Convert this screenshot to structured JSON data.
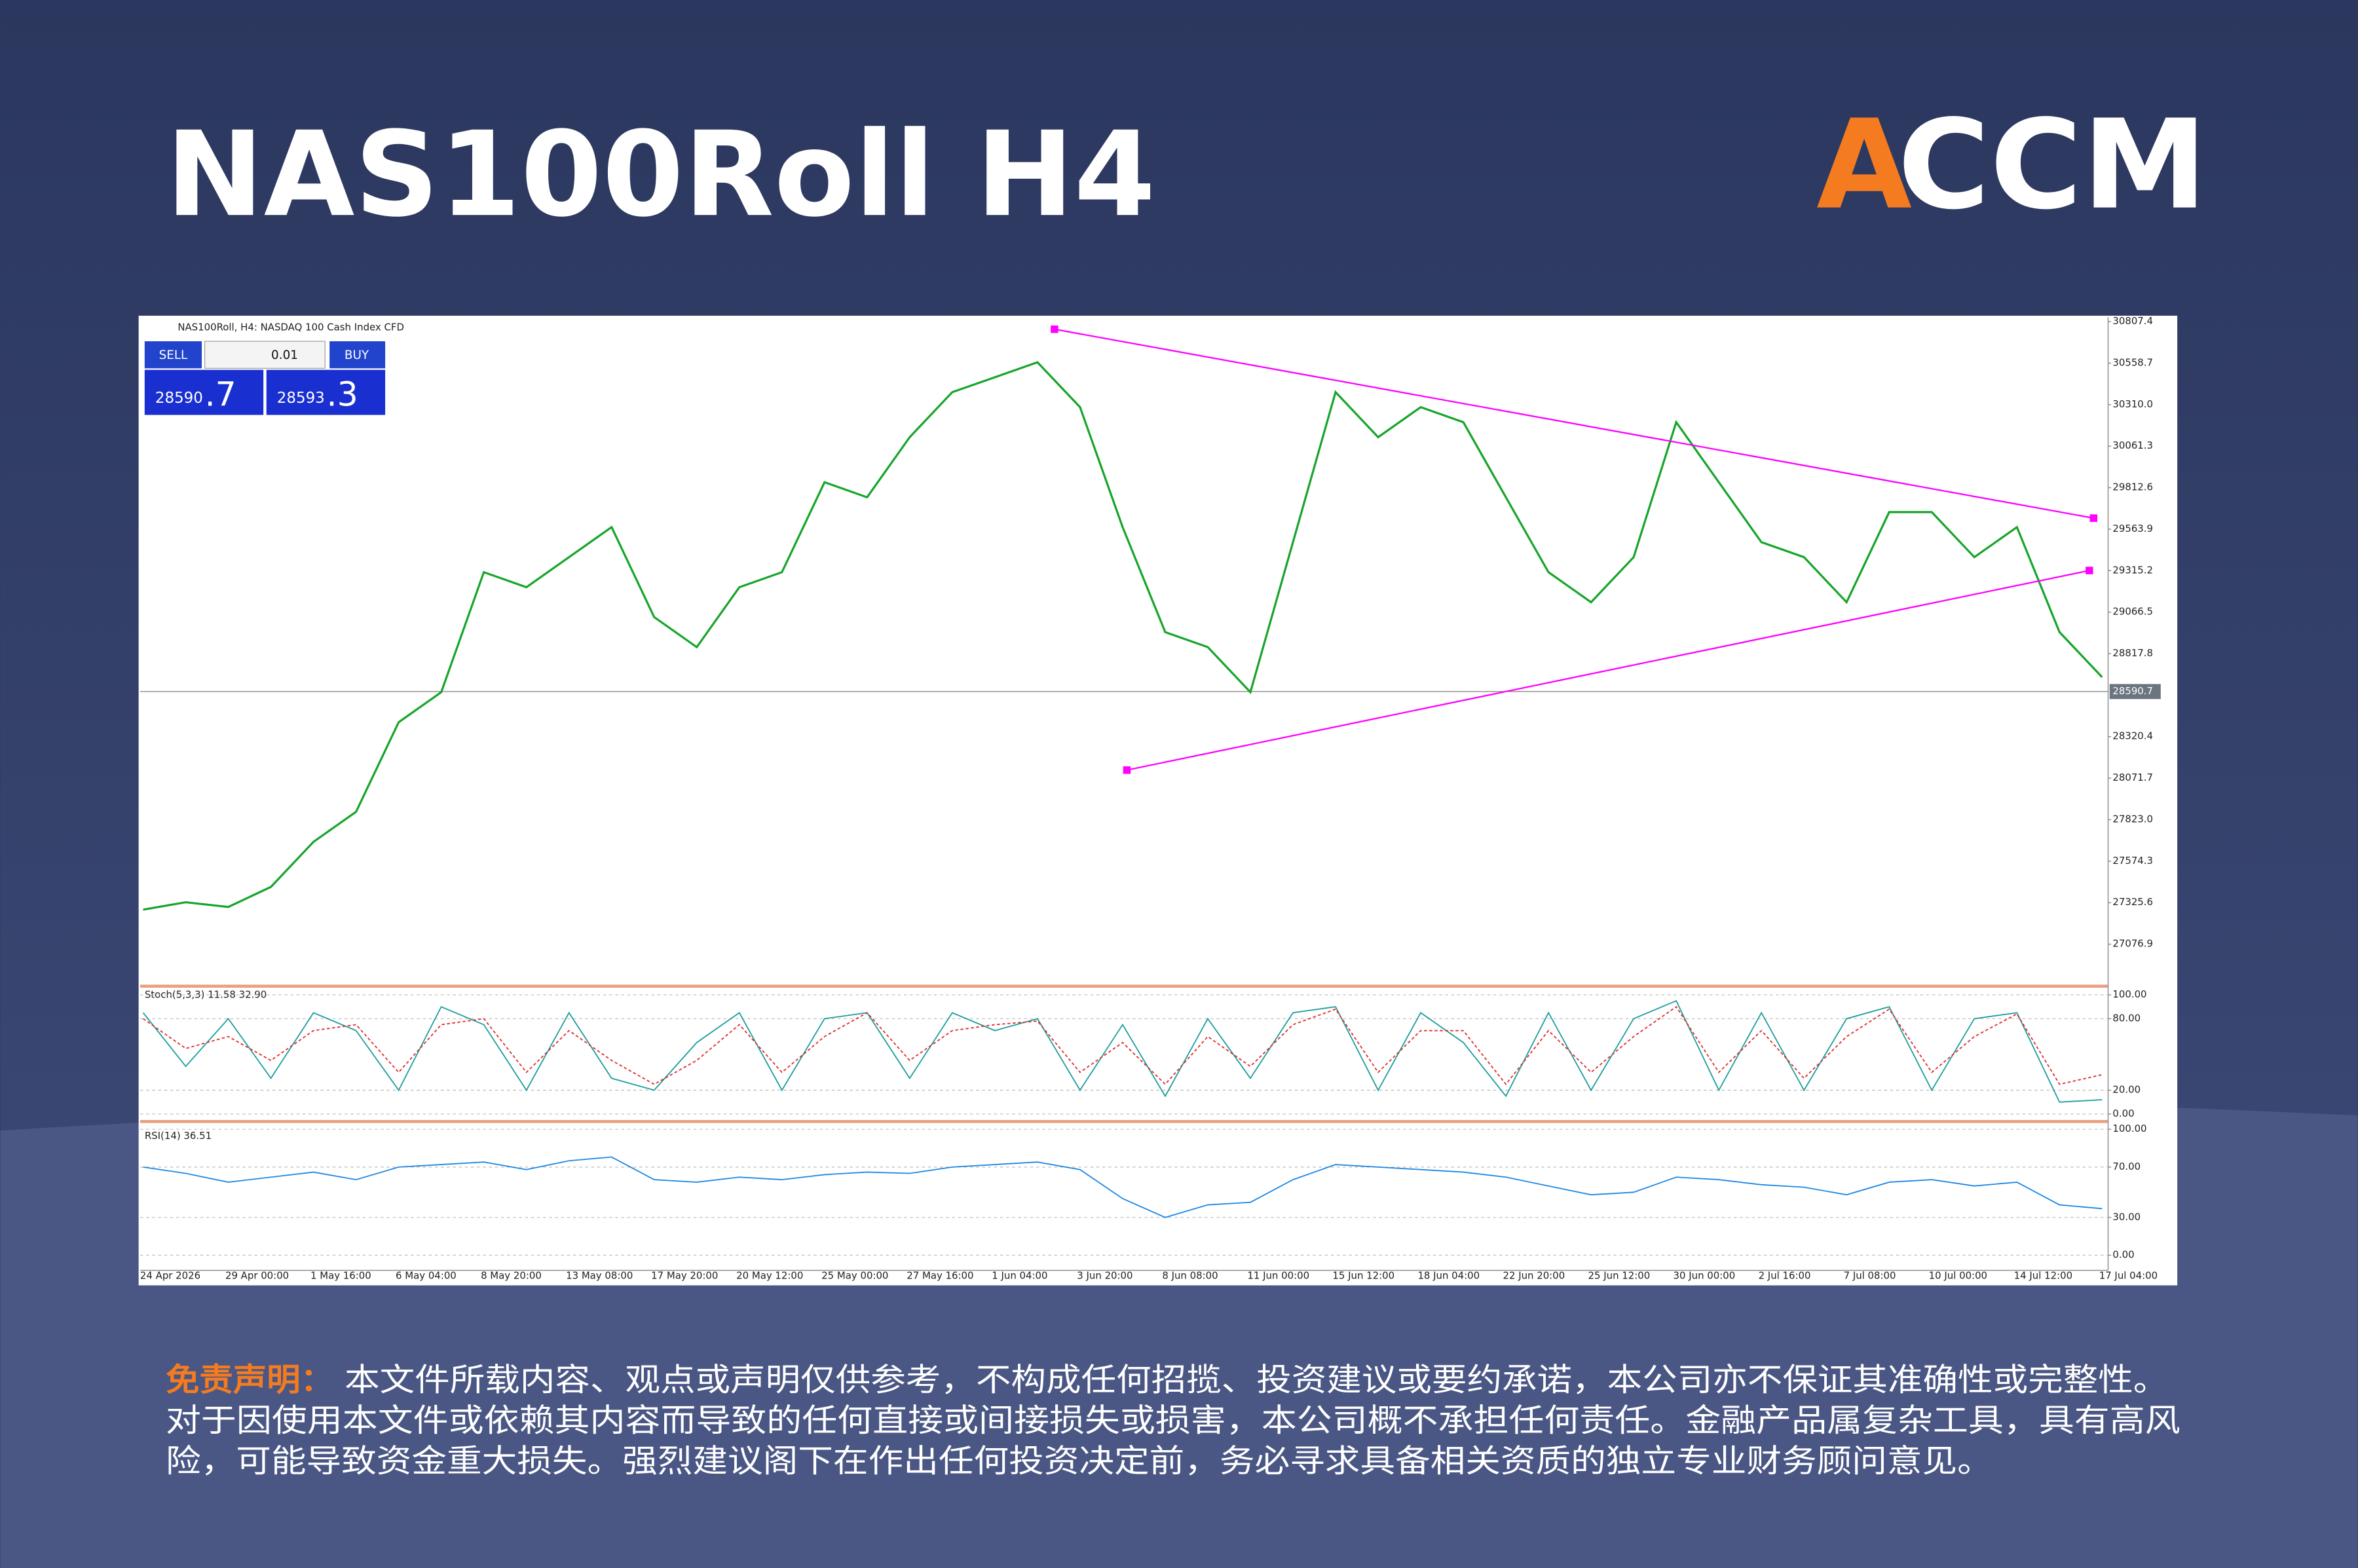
{
  "page": {
    "title": "NAS100Roll H4",
    "logo": {
      "a": "A",
      "ccm": "CCM"
    },
    "disclaimer": {
      "label": "免责声明：",
      "lines": [
        "本文件所载内容、观点或声明仅供参考，不构成任何招揽、投资建议或要约承诺，本公司亦不保证其准确性或完整性。",
        "对于因使用本文件或依赖其内容而导致的任何直接或间接损失或损害，本公司概不承担任何责任。金融产品属复杂工具，具有高风",
        "险，可能导致资金重大损失。强烈建议阁下在作出任何投资决定前，务必寻求具备相关资质的独立专业财务顾问意见。"
      ]
    }
  },
  "chart_data": [
    {
      "type": "line",
      "title": "NAS100Roll, H4:  NASDAQ 100 Cash Index CFD",
      "trade_panel": {
        "sell": {
          "label": "SELL",
          "price": "28590",
          "price_frac": ".7"
        },
        "buy": {
          "label": "BUY",
          "price": "28593",
          "price_frac": ".3"
        },
        "lot": "0.01"
      },
      "categories": [
        "24 Apr 2026",
        null,
        "29 Apr 00:00",
        null,
        "1 May 16:00",
        null,
        "6 May 04:00",
        null,
        "8 May 20:00",
        null,
        "13 May 08:00",
        null,
        "17 May 20:00",
        null,
        "20 May 12:00",
        null,
        "25 May 00:00",
        null,
        "27 May 16:00",
        null,
        "1 Jun 04:00",
        null,
        "3 Jun 20:00",
        null,
        "8 Jun 08:00",
        null,
        "11 Jun 00:00",
        null,
        "15 Jun 12:00",
        null,
        "18 Jun 04:00",
        null,
        "22 Jun 20:00",
        null,
        "25 Jun 12:00",
        null,
        "30 Jun 00:00",
        null,
        "2 Jul 16:00",
        null,
        "7 Jul 08:00",
        null,
        "10 Jul 00:00",
        null,
        "14 Jul 12:00",
        null,
        "17 Jul 04:00"
      ],
      "series": [
        {
          "color": "#17a52b",
          "values": [
            27284,
            27328,
            27300,
            27420,
            27690,
            27870,
            28407,
            28587,
            29306,
            29216,
            29396,
            29576,
            29037,
            28857,
            29216,
            29306,
            29845,
            29755,
            30115,
            30385,
            30474,
            30564,
            30295,
            29576,
            28947,
            28857,
            28587,
            29486,
            30385,
            30115,
            30295,
            30205,
            29755,
            29306,
            29126,
            29396,
            30205,
            29845,
            29486,
            29396,
            29126,
            29666,
            29666,
            29396,
            29576,
            28947,
            28677
          ]
        }
      ],
      "ylim": [
        26834,
        30834
      ],
      "yticks": [
        30807.4,
        30558.7,
        {
          "value": 30310,
          "label": "30310.0"
        },
        30061.3,
        29812.6,
        29563.9,
        29315.2,
        29066.5,
        28817.8,
        28320.4,
        28071.7,
        {
          "value": 27823,
          "label": "27823.0"
        },
        27574.3,
        27325.6,
        27076.9
      ],
      "grid": false,
      "current_price": 28590.7,
      "trendline_color": "#ff00ff",
      "trendlines": [
        {
          "x": [
            21.4,
            45.8
          ],
          "y": [
            30762,
            29630
          ]
        },
        {
          "x": [
            23.1,
            45.7
          ],
          "y": [
            28120,
            29316
          ]
        }
      ]
    },
    {
      "type": "line",
      "title": "Stoch(5,3,3) 11.58 32.90",
      "series": [
        {
          "color": "#1f9e9e",
          "values": [
            85,
            40,
            80,
            30,
            85,
            70,
            20,
            90,
            75,
            20,
            85,
            30,
            20,
            60,
            85,
            20,
            80,
            85,
            30,
            85,
            70,
            80,
            20,
            75,
            15,
            80,
            30,
            85,
            90,
            20,
            85,
            60,
            15,
            85,
            20,
            80,
            95,
            20,
            85,
            20,
            80,
            90,
            20,
            80,
            85,
            10,
            12
          ]
        },
        {
          "color": "#e03030",
          "dash": true,
          "values": [
            80,
            55,
            65,
            45,
            70,
            75,
            35,
            75,
            80,
            35,
            70,
            45,
            25,
            45,
            75,
            35,
            65,
            85,
            45,
            70,
            75,
            78,
            35,
            60,
            25,
            65,
            40,
            75,
            88,
            35,
            70,
            70,
            25,
            70,
            35,
            65,
            90,
            35,
            70,
            30,
            65,
            88,
            35,
            65,
            84,
            25,
            33
          ]
        }
      ],
      "ylim": [
        -5,
        106
      ],
      "yticks": [
        {
          "value": 100,
          "label": "100.00"
        },
        {
          "value": 80,
          "label": "80.00"
        },
        {
          "value": 20,
          "label": "20.00"
        },
        {
          "value": 0,
          "label": "0.00"
        }
      ],
      "grid": true
    },
    {
      "type": "line",
      "title": "RSI(14) 36.51",
      "series": [
        {
          "color": "#1e88e5",
          "values": [
            70,
            65,
            58,
            62,
            66,
            60,
            70,
            72,
            74,
            68,
            75,
            78,
            60,
            58,
            62,
            60,
            64,
            66,
            65,
            70,
            72,
            74,
            68,
            45,
            30,
            40,
            42,
            60,
            72,
            70,
            68,
            66,
            62,
            55,
            48,
            50,
            62,
            60,
            56,
            54,
            48,
            58,
            60,
            55,
            58,
            40,
            37
          ]
        }
      ],
      "ylim": [
        -12,
        105
      ],
      "yticks": [
        {
          "value": 100,
          "label": "100.00"
        },
        {
          "value": 70,
          "label": "70.00"
        },
        {
          "value": 30,
          "label": "30.00"
        },
        {
          "value": 0,
          "label": "0.00"
        }
      ],
      "grid": true
    }
  ]
}
